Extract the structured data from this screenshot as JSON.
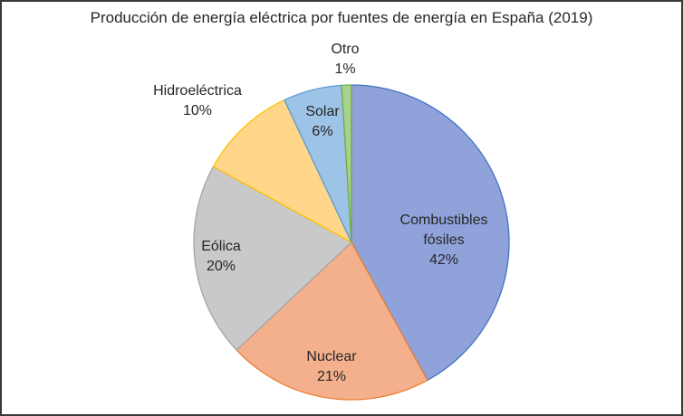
{
  "chart_data": {
    "type": "pie",
    "title": "Producción de energía eléctrica por fuentes de energía en España (2019)",
    "categories": [
      "Combustibles fósiles",
      "Nuclear",
      "Eólica",
      "Hidroeléctrica",
      "Solar",
      "Otro"
    ],
    "values": [
      42,
      21,
      20,
      10,
      6,
      1
    ],
    "unit": "%",
    "colors": [
      "#8FA3DA",
      "#F4B08D",
      "#C9C9C9",
      "#FFD68A",
      "#9DC3E6",
      "#A9D18E"
    ],
    "edge_colors": [
      "#4472C4",
      "#ED7D31",
      "#A5A5A5",
      "#FFC000",
      "#5B9BD5",
      "#70AD47"
    ],
    "start_angle": "top, clockwise",
    "legend": "none (data labels on slices)"
  },
  "labels": {
    "combustibles_line1": "Combustibles",
    "combustibles_line2": "fósiles",
    "combustibles_pct": "42%",
    "nuclear": "Nuclear",
    "nuclear_pct": "21%",
    "eolica": "Eólica",
    "eolica_pct": "20%",
    "hidro": "Hidroeléctrica",
    "hidro_pct": "10%",
    "solar": "Solar",
    "solar_pct": "6%",
    "otro": "Otro",
    "otro_pct": "1%"
  }
}
